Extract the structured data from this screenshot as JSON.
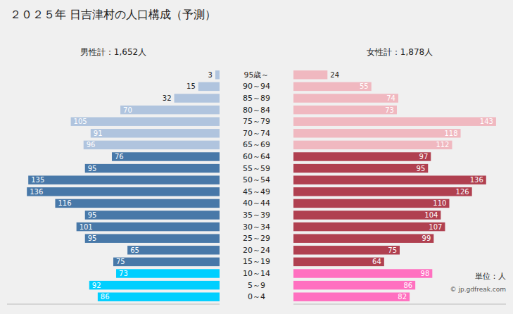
{
  "chart_data": {
    "type": "pyramid",
    "title": "２０２５年 日吉津村の人口構成（予測）",
    "orientation": "horizontal",
    "categories": [
      "95歳～",
      "90～94",
      "85～89",
      "80～84",
      "75～79",
      "70～74",
      "65～69",
      "60～64",
      "55～59",
      "50～54",
      "45～49",
      "40～44",
      "35～39",
      "30～34",
      "25～29",
      "20～24",
      "15～19",
      "10～14",
      "5～9",
      "0～4"
    ],
    "series": [
      {
        "name": "男性計：1,652人",
        "values": [
          3,
          15,
          32,
          70,
          105,
          91,
          96,
          76,
          95,
          135,
          136,
          116,
          95,
          101,
          95,
          65,
          75,
          73,
          92,
          86
        ],
        "colors": [
          "#b0c4de",
          "#b0c4de",
          "#b0c4de",
          "#b0c4de",
          "#b0c4de",
          "#b0c4de",
          "#b0c4de",
          "#4878a8",
          "#4878a8",
          "#4878a8",
          "#4878a8",
          "#4878a8",
          "#4878a8",
          "#4878a8",
          "#4878a8",
          "#4878a8",
          "#4878a8",
          "#00cfff",
          "#00cfff",
          "#00cfff"
        ]
      },
      {
        "name": "女性計：1,878人",
        "values": [
          24,
          55,
          74,
          73,
          143,
          118,
          112,
          97,
          95,
          136,
          126,
          110,
          104,
          107,
          99,
          75,
          64,
          98,
          86,
          82
        ],
        "colors": [
          "#f0b8c0",
          "#f0b8c0",
          "#f0b8c0",
          "#f0b8c0",
          "#f0b8c0",
          "#f0b8c0",
          "#f0b8c0",
          "#b04050",
          "#b04050",
          "#b04050",
          "#b04050",
          "#b04050",
          "#b04050",
          "#b04050",
          "#b04050",
          "#b04050",
          "#b04050",
          "#ff70c0",
          "#ff70c0",
          "#ff70c0"
        ]
      }
    ],
    "annotations": [
      "単位：人",
      "© jp.gdfreak.com"
    ],
    "xlim": [
      0,
      150
    ],
    "data_labels": true,
    "tick_labels": false,
    "grid": false
  }
}
